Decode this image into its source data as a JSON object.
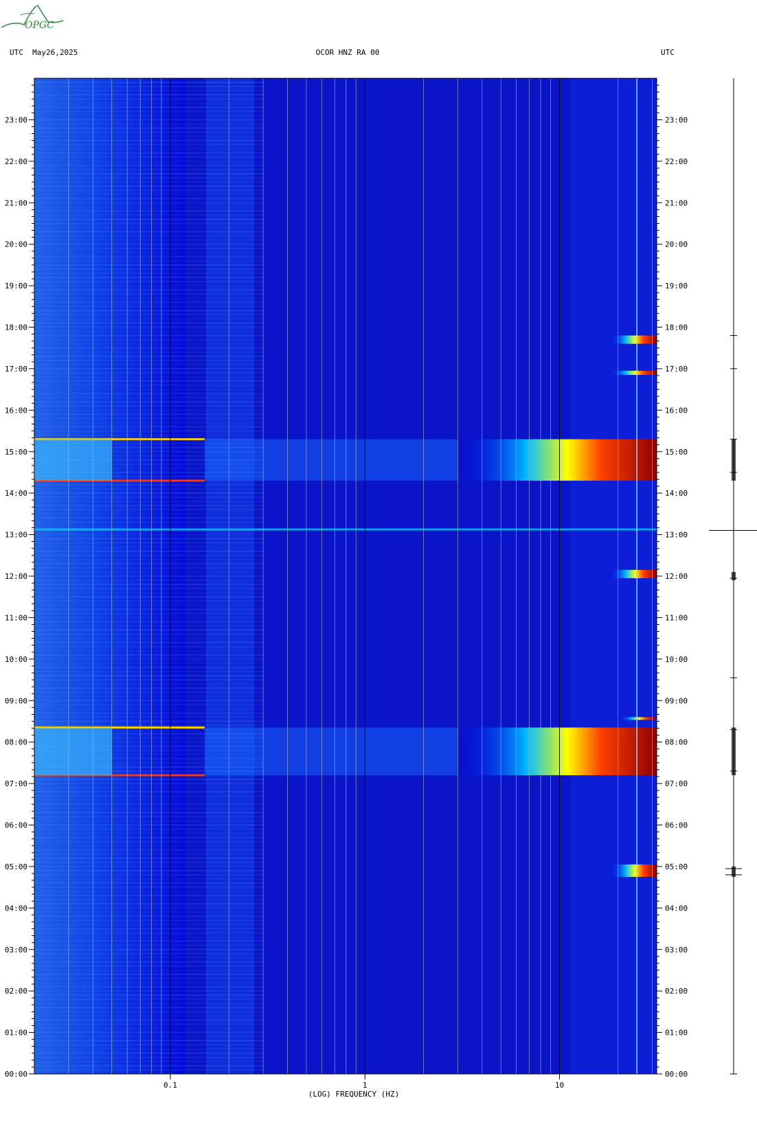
{
  "header": {
    "left": "UTC  May26,2025",
    "center": "OCOR HNZ RA 00",
    "right": "UTC"
  },
  "logo": {
    "text": "OPGC",
    "color": "#2a8a3a"
  },
  "chart_data": {
    "type": "heatmap",
    "xlabel": "(LOG) FREQUENCY (HZ)",
    "ylabel": "",
    "x_scale": "log",
    "xlim": [
      0.02,
      31.6
    ],
    "x_ticks": [
      {
        "value": 0.1,
        "label": "0.1"
      },
      {
        "value": 1,
        "label": "1"
      },
      {
        "value": 10,
        "label": "10"
      }
    ],
    "y_units": "UTC hours",
    "ylim": [
      0,
      24
    ],
    "y_ticks": [
      "00:00",
      "01:00",
      "02:00",
      "03:00",
      "04:00",
      "05:00",
      "06:00",
      "07:00",
      "08:00",
      "09:00",
      "10:00",
      "11:00",
      "12:00",
      "13:00",
      "14:00",
      "15:00",
      "16:00",
      "17:00",
      "18:00",
      "19:00",
      "20:00",
      "21:00",
      "22:00",
      "23:00"
    ],
    "grid": true,
    "colormap": [
      "#00008b",
      "#0000ff",
      "#00bfff",
      "#ffff00",
      "#ff0000",
      "#8b0000"
    ],
    "high_energy_bands_utc": [
      {
        "start": 7.2,
        "end": 8.35,
        "fmin": 3,
        "intensity": "very high"
      },
      {
        "start": 14.3,
        "end": 15.3,
        "fmin": 3,
        "intensity": "very high"
      },
      {
        "start": 13.1,
        "end": 13.15,
        "fmin": 0.02,
        "intensity": "moderate"
      },
      {
        "start": 11.95,
        "end": 12.15,
        "fmin": 18,
        "intensity": "high"
      },
      {
        "start": 4.75,
        "end": 5.05,
        "fmin": 18,
        "intensity": "high"
      },
      {
        "start": 17.6,
        "end": 17.8,
        "fmin": 18,
        "intensity": "high"
      },
      {
        "start": 16.85,
        "end": 16.95,
        "fmin": 18,
        "intensity": "high"
      },
      {
        "start": 8.55,
        "end": 8.6,
        "fmin": 20,
        "intensity": "high"
      }
    ],
    "seismogram_events_utc": [
      0.0,
      4.8,
      4.95,
      7.3,
      8.3,
      9.55,
      11.95,
      13.1,
      14.5,
      15.3,
      17.0,
      17.8
    ]
  }
}
